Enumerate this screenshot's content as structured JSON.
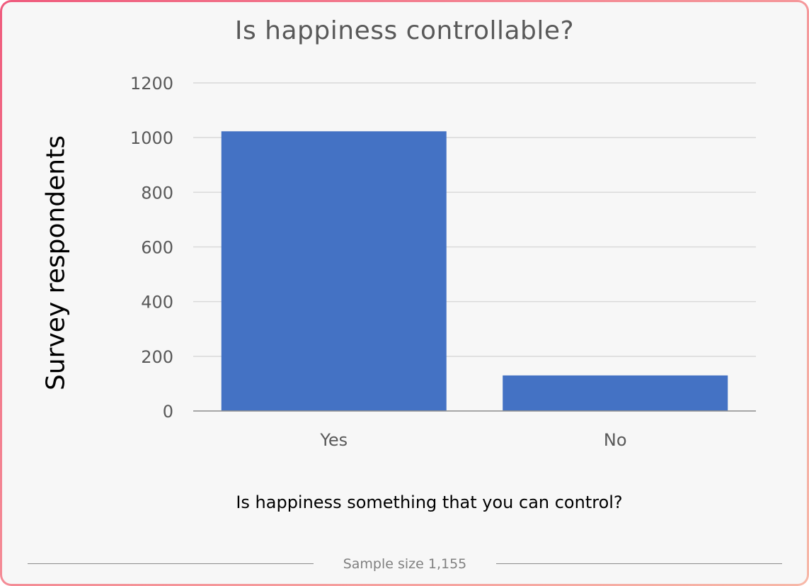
{
  "colors": {
    "bar": "#4472c4",
    "grid": "#d9d9d9",
    "axis": "#8c8c8c",
    "tick_text": "#595959"
  },
  "chart_data": {
    "type": "bar",
    "title": "Is happiness controllable?",
    "xlabel": "Is happiness something that you can control?",
    "ylabel": "Survey respondents",
    "categories": [
      "Yes",
      "No"
    ],
    "values": [
      1023,
      130
    ],
    "ylim": [
      0,
      1200
    ],
    "yticks": [
      0,
      200,
      400,
      600,
      800,
      1000,
      1200
    ],
    "grid": true,
    "legend": "none"
  },
  "footer": {
    "text": "Sample size 1,155"
  }
}
